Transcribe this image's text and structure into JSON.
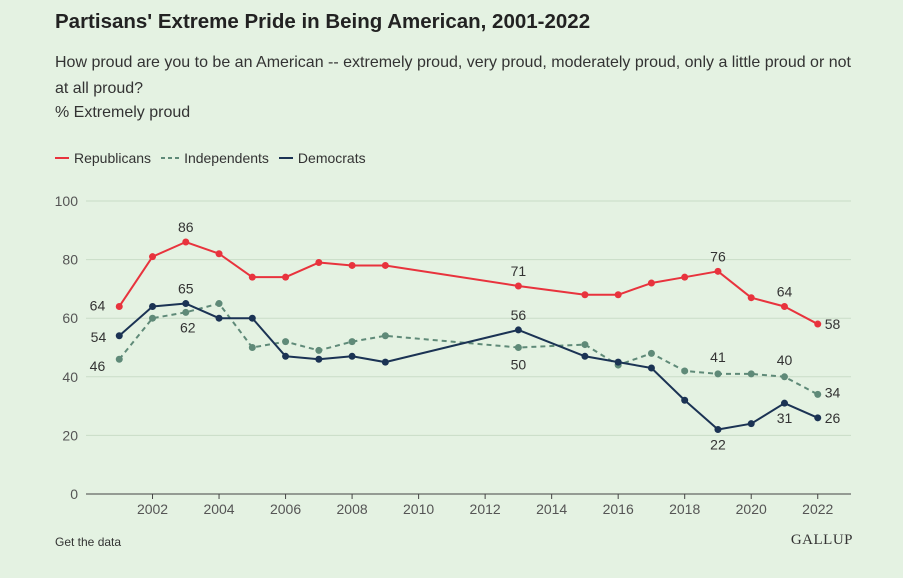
{
  "title": "Partisans' Extreme Pride in Being American, 2001-2022",
  "subtitle": "How proud are you to be an American -- extremely proud, very proud, moderately proud, only a little proud or not at all proud?",
  "unit_label": "% Extremely proud",
  "footer": {
    "link": "Get the data",
    "brand": "GALLUP"
  },
  "legend": [
    {
      "name": "Republicans",
      "color": "#e8333d",
      "style": "solid"
    },
    {
      "name": "Independents",
      "color": "#5f8a78",
      "style": "dashed"
    },
    {
      "name": "Democrats",
      "color": "#1b3354",
      "style": "solid"
    }
  ],
  "chart_data": {
    "type": "line",
    "title": "Partisans' Extreme Pride in Being American, 2001-2022",
    "ylabel": "% Extremely proud",
    "xlim": [
      2000,
      2023
    ],
    "ylim": [
      0,
      100
    ],
    "yticks": [
      0,
      20,
      40,
      60,
      80,
      100
    ],
    "xticks": [
      2002,
      2004,
      2006,
      2008,
      2010,
      2012,
      2014,
      2016,
      2018,
      2020,
      2022
    ],
    "grid": true,
    "series": [
      {
        "name": "Republicans",
        "color": "#e8333d",
        "dash": false,
        "points": [
          [
            2001,
            64
          ],
          [
            2002,
            81
          ],
          [
            2003,
            86
          ],
          [
            2004,
            82
          ],
          [
            2005,
            74
          ],
          [
            2006,
            74
          ],
          [
            2007,
            79
          ],
          [
            2008,
            78
          ],
          [
            2009,
            78
          ],
          [
            2013,
            71
          ],
          [
            2015,
            68
          ],
          [
            2016,
            68
          ],
          [
            2017,
            72
          ],
          [
            2018,
            74
          ],
          [
            2019,
            76
          ],
          [
            2020,
            67
          ],
          [
            2021,
            64
          ],
          [
            2022,
            58
          ]
        ],
        "labels": [
          [
            2001,
            "64"
          ],
          [
            2003,
            "86"
          ],
          [
            2013,
            "71"
          ],
          [
            2019,
            "76"
          ],
          [
            2021,
            "64"
          ],
          [
            2022,
            "58"
          ]
        ]
      },
      {
        "name": "Independents",
        "color": "#5f8a78",
        "dash": true,
        "points": [
          [
            2001,
            46
          ],
          [
            2002,
            60
          ],
          [
            2003,
            62
          ],
          [
            2004,
            65
          ],
          [
            2005,
            50
          ],
          [
            2006,
            52
          ],
          [
            2007,
            49
          ],
          [
            2008,
            52
          ],
          [
            2009,
            54
          ],
          [
            2013,
            50
          ],
          [
            2015,
            51
          ],
          [
            2016,
            44
          ],
          [
            2017,
            48
          ],
          [
            2018,
            42
          ],
          [
            2019,
            41
          ],
          [
            2020,
            41
          ],
          [
            2021,
            40
          ],
          [
            2022,
            34
          ]
        ],
        "labels": [
          [
            2001,
            "46"
          ],
          [
            2003,
            "62"
          ],
          [
            2013,
            "50"
          ],
          [
            2019,
            "41"
          ],
          [
            2021,
            "40"
          ],
          [
            2022,
            "34"
          ]
        ]
      },
      {
        "name": "Democrats",
        "color": "#1b3354",
        "dash": false,
        "points": [
          [
            2001,
            54
          ],
          [
            2002,
            64
          ],
          [
            2003,
            65
          ],
          [
            2004,
            60
          ],
          [
            2005,
            60
          ],
          [
            2006,
            47
          ],
          [
            2007,
            46
          ],
          [
            2008,
            47
          ],
          [
            2009,
            45
          ],
          [
            2013,
            56
          ],
          [
            2015,
            47
          ],
          [
            2016,
            45
          ],
          [
            2017,
            43
          ],
          [
            2018,
            32
          ],
          [
            2019,
            22
          ],
          [
            2020,
            24
          ],
          [
            2021,
            31
          ],
          [
            2022,
            26
          ]
        ],
        "labels": [
          [
            2001,
            "54"
          ],
          [
            2003,
            "65"
          ],
          [
            2013,
            "56"
          ],
          [
            2019,
            "22"
          ],
          [
            2021,
            "31"
          ],
          [
            2022,
            "26"
          ]
        ]
      }
    ]
  }
}
